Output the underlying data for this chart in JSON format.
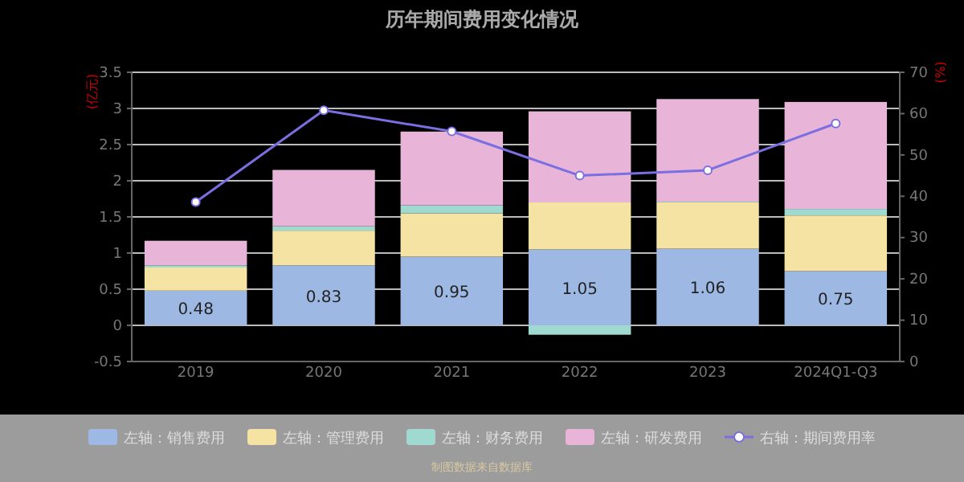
{
  "chart_data": {
    "type": "bar",
    "title": "历年期间费用变化情况",
    "ylabel": "(亿元)",
    "y2label": "(%)",
    "categories": [
      "2019",
      "2020",
      "2021",
      "2022",
      "2023",
      "2024Q1-Q3"
    ],
    "stacked": true,
    "series": [
      {
        "name": "左轴：销售费用",
        "color": "#9db8e3",
        "values": [
          0.48,
          0.83,
          0.95,
          1.05,
          1.06,
          0.75
        ],
        "value_labels": [
          "0.48",
          "0.83",
          "0.95",
          "1.05",
          "1.06",
          "0.75"
        ]
      },
      {
        "name": "左轴：管理费用",
        "color": "#f5e3a3",
        "values": [
          0.32,
          0.48,
          0.6,
          0.65,
          0.64,
          0.77
        ]
      },
      {
        "name": "左轴：财务费用",
        "color": "#9fd9cf",
        "values": [
          0.03,
          0.06,
          0.11,
          -0.13,
          0.01,
          0.09
        ]
      },
      {
        "name": "左轴：研发费用",
        "color": "#e8b4d8",
        "values": [
          0.34,
          0.78,
          1.02,
          1.26,
          1.42,
          1.48
        ]
      },
      {
        "name": "右轴：期间费用率",
        "type": "line",
        "axis": "y2",
        "color": "#7a6fe0",
        "values": [
          38.6,
          60.8,
          55.7,
          45.0,
          46.3,
          57.6
        ]
      }
    ],
    "ylim": [
      -0.5,
      3.5
    ],
    "yticks": [
      -0.5,
      0,
      0.5,
      1,
      1.5,
      2,
      2.5,
      3,
      3.5
    ],
    "y2lim": [
      0,
      70
    ],
    "y2ticks": [
      0,
      10,
      20,
      30,
      40,
      50,
      60,
      70
    ],
    "grid": "y",
    "legend": "bottom",
    "marker": "circle",
    "annotations": [
      "制图数据来自数据库"
    ]
  }
}
